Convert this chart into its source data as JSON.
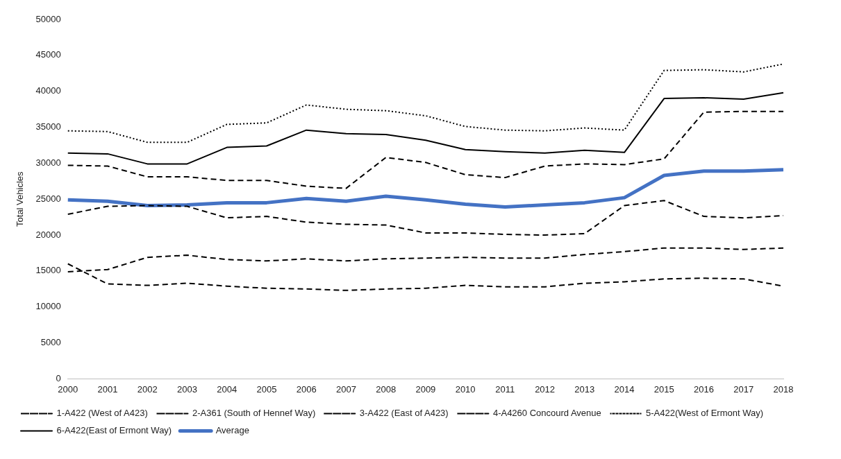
{
  "chart_data": {
    "type": "line",
    "ylabel": "Total Vehicles",
    "categories": [
      "2000",
      "2001",
      "2002",
      "2003",
      "2004",
      "2005",
      "2006",
      "2007",
      "2008",
      "2009",
      "2010",
      "2011",
      "2012",
      "2013",
      "2014",
      "2015",
      "2016",
      "2017",
      "2018"
    ],
    "series": [
      {
        "name": "1-A422 (West of A423)",
        "color": "#000000",
        "line_style": "dashed",
        "values": [
          22900,
          24000,
          24100,
          24000,
          22400,
          22600,
          21800,
          21500,
          21400,
          20300,
          20300,
          20100,
          20000,
          20200,
          24100,
          24800,
          22600,
          22400,
          22700
        ]
      },
      {
        "name": "2-A361 (South of Hennef Way)",
        "color": "#000000",
        "line_style": "dashed",
        "values": [
          16000,
          13200,
          13000,
          13300,
          12900,
          12600,
          12500,
          12300,
          12500,
          12600,
          13000,
          12800,
          12800,
          13300,
          13500,
          13900,
          14000,
          13900,
          12900
        ]
      },
      {
        "name": "3-A422 (East of A423)",
        "color": "#000000",
        "line_style": "dashed",
        "values": [
          29700,
          29600,
          28100,
          28100,
          27600,
          27600,
          26800,
          26500,
          30800,
          30100,
          28400,
          28000,
          29600,
          29900,
          29800,
          30600,
          37100,
          37200,
          37200
        ]
      },
      {
        "name": "4-A4260 Concourd Avenue",
        "color": "#000000",
        "line_style": "dashed",
        "values": [
          14900,
          15200,
          16900,
          17200,
          16600,
          16400,
          16700,
          16400,
          16700,
          16800,
          16900,
          16800,
          16800,
          17300,
          17700,
          18200,
          18200,
          18000,
          18200
        ]
      },
      {
        "name": "5-A422(West of Ermont Way)",
        "color": "#000000",
        "line_style": "dotted",
        "values": [
          34500,
          34400,
          32900,
          32900,
          35400,
          35600,
          38100,
          37500,
          37300,
          36600,
          35100,
          34600,
          34500,
          34900,
          34600,
          42900,
          43000,
          42700,
          43800
        ]
      },
      {
        "name": "6-A422(East of Ermont Way)",
        "color": "#000000",
        "line_style": "solid",
        "values": [
          31400,
          31300,
          29900,
          29900,
          32200,
          32400,
          34600,
          34100,
          34000,
          33200,
          31900,
          31600,
          31400,
          31800,
          31500,
          39000,
          39100,
          38900,
          39800
        ]
      },
      {
        "name": "Average",
        "color": "#4472c4",
        "line_style": "solid",
        "values": [
          24900,
          24700,
          24100,
          24200,
          24500,
          24500,
          25100,
          24700,
          25400,
          24900,
          24300,
          23900,
          24200,
          24500,
          25200,
          28300,
          28900,
          28900,
          29100
        ]
      }
    ],
    "ylim": [
      0,
      50000
    ],
    "yticks": [
      0,
      5000,
      10000,
      15000,
      20000,
      25000,
      30000,
      35000,
      40000,
      45000,
      50000
    ],
    "grid": false,
    "legend": "bottom",
    "marker": "none"
  }
}
